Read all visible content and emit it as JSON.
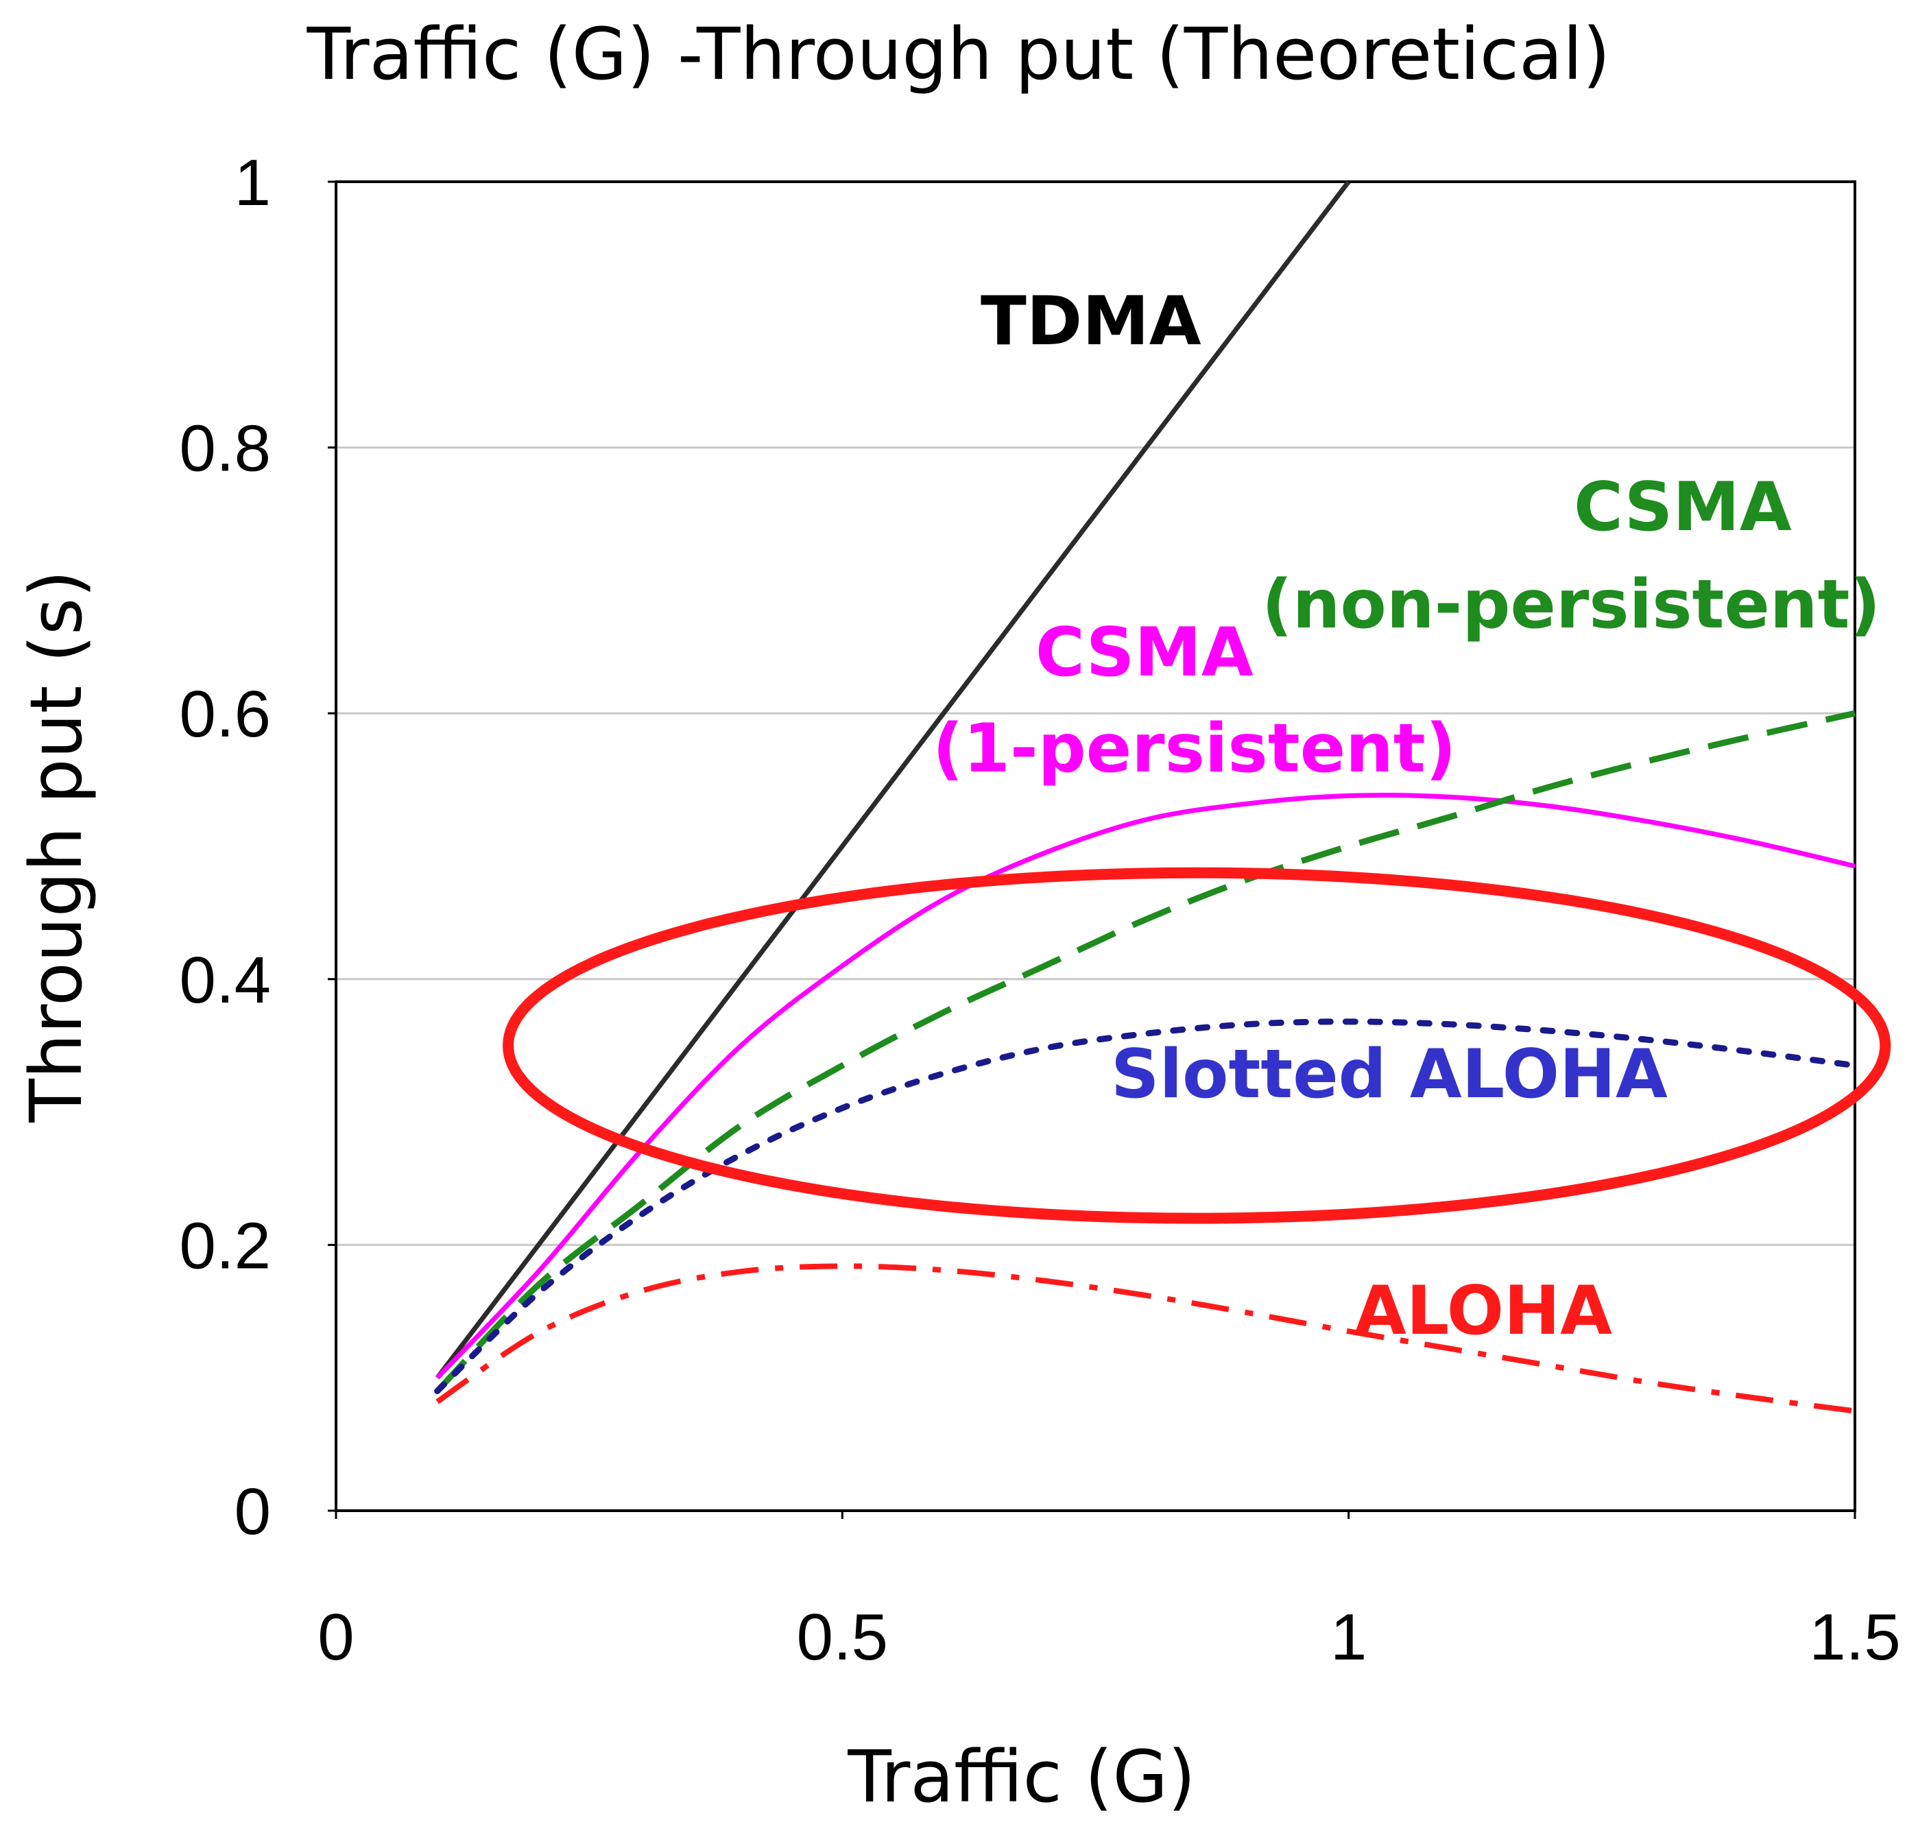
{
  "chart_data": {
    "type": "line",
    "title": "Traffic (G) -Through put (Theoretical)",
    "xlabel": "Traffic (G)",
    "ylabel": "Through put (s)",
    "xlim": [
      0,
      1.5
    ],
    "ylim": [
      0,
      1
    ],
    "x_ticks": [
      "0",
      "0.5",
      "1",
      "1.5"
    ],
    "y_ticks": [
      "0",
      "0.2",
      "0.4",
      "0.6",
      "0.8",
      "1"
    ],
    "grid": "horizontal",
    "series": [
      {
        "name": "TDMA",
        "label_lines": [
          "TDMA"
        ],
        "color": "#2b2b2b",
        "style": "solid",
        "x": [
          0.1,
          1.0
        ],
        "y": [
          0.1,
          1.0
        ]
      },
      {
        "name": "CSMA (1-persistent)",
        "label_lines": [
          "CSMA",
          "(1-persistent)"
        ],
        "color": "#ff00ff",
        "style": "solid",
        "x": [
          0.1,
          0.2,
          0.3,
          0.4,
          0.5,
          0.6,
          0.7,
          0.8,
          0.9,
          1.0,
          1.1,
          1.2,
          1.3,
          1.4,
          1.5
        ],
        "y": [
          0.1,
          0.18,
          0.27,
          0.35,
          0.41,
          0.46,
          0.495,
          0.52,
          0.532,
          0.538,
          0.537,
          0.53,
          0.518,
          0.503,
          0.485
        ]
      },
      {
        "name": "CSMA (non-persistent)",
        "label_lines": [
          "CSMA",
          "(non-persistent)"
        ],
        "color": "#1e8c1e",
        "style": "dashed",
        "x": [
          0.1,
          0.2,
          0.3,
          0.4,
          0.5,
          0.6,
          0.7,
          0.8,
          0.9,
          1.0,
          1.1,
          1.2,
          1.3,
          1.4,
          1.5
        ],
        "y": [
          0.09,
          0.17,
          0.23,
          0.29,
          0.335,
          0.375,
          0.41,
          0.445,
          0.475,
          0.5,
          0.522,
          0.545,
          0.565,
          0.583,
          0.6
        ]
      },
      {
        "name": "Slotted ALOHA",
        "label_lines": [
          "Slotted ALOHA"
        ],
        "color": "#1a1a8c",
        "style": "dotted",
        "x": [
          0.1,
          0.2,
          0.3,
          0.4,
          0.5,
          0.6,
          0.7,
          0.8,
          0.9,
          1.0,
          1.1,
          1.2,
          1.3,
          1.4,
          1.5
        ],
        "y": [
          0.09,
          0.164,
          0.222,
          0.268,
          0.303,
          0.329,
          0.348,
          0.359,
          0.366,
          0.368,
          0.366,
          0.361,
          0.354,
          0.345,
          0.335
        ]
      },
      {
        "name": "ALOHA",
        "label_lines": [
          "ALOHA"
        ],
        "color": "#ff1a1a",
        "style": "dashdot",
        "x": [
          0.1,
          0.2,
          0.3,
          0.4,
          0.5,
          0.6,
          0.7,
          0.8,
          0.9,
          1.0,
          1.1,
          1.2,
          1.3,
          1.4,
          1.5
        ],
        "y": [
          0.082,
          0.134,
          0.165,
          0.18,
          0.184,
          0.181,
          0.173,
          0.162,
          0.149,
          0.135,
          0.122,
          0.109,
          0.096,
          0.085,
          0.075
        ]
      }
    ],
    "annotations": [
      {
        "type": "ellipse",
        "color": "#ff1a1a",
        "center": [
          0.85,
          0.35
        ],
        "radius": [
          0.68,
          0.13
        ]
      }
    ]
  }
}
